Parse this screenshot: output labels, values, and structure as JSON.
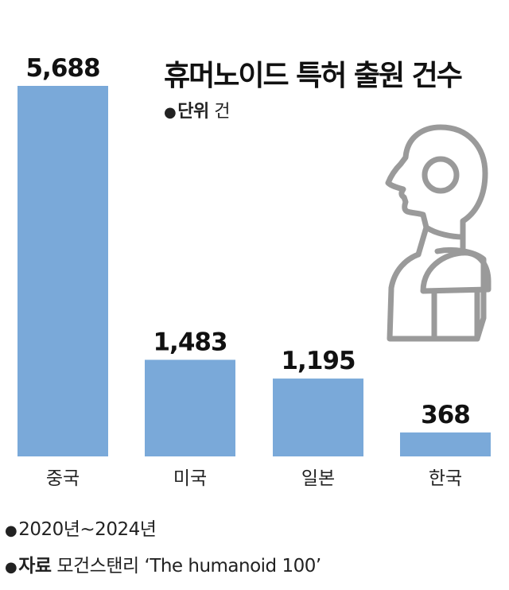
{
  "title": "휴머노이드 특허 출원 건수",
  "unit": {
    "label": "단위",
    "value": "건"
  },
  "footnote_period": "2020년~2024년",
  "source": {
    "label": "자료",
    "value": "모건스탠리 ‘The humanoid 100’"
  },
  "icon": "humanoid-robot-icon",
  "colors": {
    "bar": "#7aa9d9",
    "text": "#111111",
    "icon_stroke": "#9a9a9a"
  },
  "chart_data": {
    "type": "bar",
    "categories": [
      "중국",
      "미국",
      "일본",
      "한국"
    ],
    "values": [
      5688,
      1483,
      1195,
      368
    ],
    "value_labels": [
      "5,688",
      "1,483",
      "1,195",
      "368"
    ],
    "title": "휴머노이드 특허 출원 건수",
    "xlabel": "",
    "ylabel": "",
    "ylim": [
      0,
      5688
    ],
    "grid": false,
    "legend": "none"
  }
}
